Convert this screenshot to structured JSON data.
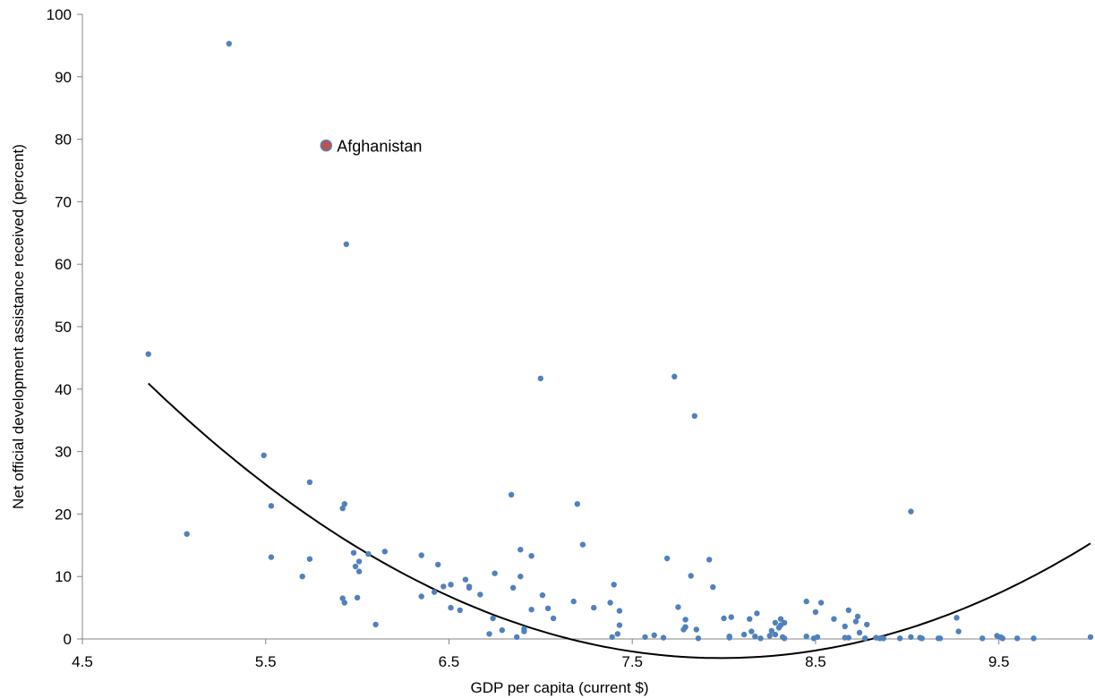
{
  "chart_data": {
    "type": "scatter",
    "xlabel": "GDP per capita (current $)",
    "ylabel": "Net official development assistance received (percent)",
    "xlim": [
      4.5,
      10.0
    ],
    "ylim": [
      0,
      100
    ],
    "x_ticks": [
      "4.5",
      "5.5",
      "6.5",
      "7.5",
      "8.5",
      "9.5"
    ],
    "x_tick_values": [
      4.5,
      5.5,
      6.5,
      7.5,
      8.5,
      9.5
    ],
    "y_ticks": [
      "0",
      "10",
      "20",
      "30",
      "40",
      "50",
      "60",
      "70",
      "80",
      "90",
      "100"
    ],
    "y_tick_values": [
      0,
      10,
      20,
      30,
      40,
      50,
      60,
      70,
      80,
      90,
      100
    ],
    "grid": false,
    "legend": "none",
    "colors": {
      "points": "#4F81BD",
      "highlight": "#C0504D",
      "trendline": "#000000"
    },
    "highlight": {
      "label": "Afghanistan",
      "x": 5.83,
      "y": 79.0
    },
    "trendline": {
      "type": "polynomial-2",
      "x_range": [
        4.86,
        10.0
      ],
      "coefficients": [
        284.3,
        -72.0,
        4.51
      ]
    },
    "points": [
      [
        4.86,
        45.6
      ],
      [
        5.07,
        16.8
      ],
      [
        5.3,
        95.3
      ],
      [
        5.49,
        29.4
      ],
      [
        5.53,
        21.3
      ],
      [
        5.53,
        13.1
      ],
      [
        5.7,
        10.0
      ],
      [
        5.74,
        25.1
      ],
      [
        5.74,
        12.8
      ],
      [
        5.92,
        20.9
      ],
      [
        5.93,
        21.6
      ],
      [
        5.94,
        63.2
      ],
      [
        5.92,
        6.5
      ],
      [
        5.93,
        5.8
      ],
      [
        5.98,
        13.8
      ],
      [
        5.99,
        11.6
      ],
      [
        6.0,
        6.6
      ],
      [
        6.01,
        10.8
      ],
      [
        6.01,
        12.4
      ],
      [
        6.06,
        13.6
      ],
      [
        6.1,
        2.3
      ],
      [
        6.15,
        14.0
      ],
      [
        6.35,
        13.4
      ],
      [
        6.35,
        6.8
      ],
      [
        6.42,
        7.5
      ],
      [
        6.44,
        11.9
      ],
      [
        6.47,
        8.4
      ],
      [
        6.51,
        8.7
      ],
      [
        6.51,
        5.0
      ],
      [
        6.56,
        4.6
      ],
      [
        6.59,
        9.5
      ],
      [
        6.61,
        8.4
      ],
      [
        6.61,
        8.2
      ],
      [
        6.67,
        7.1
      ],
      [
        6.72,
        0.8
      ],
      [
        6.74,
        3.3
      ],
      [
        6.75,
        10.5
      ],
      [
        6.79,
        1.4
      ],
      [
        6.84,
        23.1
      ],
      [
        6.85,
        8.2
      ],
      [
        6.87,
        0.3
      ],
      [
        6.89,
        14.3
      ],
      [
        6.89,
        10.0
      ],
      [
        6.91,
        1.6
      ],
      [
        6.91,
        1.2
      ],
      [
        6.95,
        13.3
      ],
      [
        6.95,
        4.7
      ],
      [
        7.0,
        41.7
      ],
      [
        7.01,
        7.0
      ],
      [
        7.04,
        4.9
      ],
      [
        7.07,
        3.3
      ],
      [
        7.18,
        6.0
      ],
      [
        7.2,
        21.6
      ],
      [
        7.23,
        15.1
      ],
      [
        7.29,
        5.0
      ],
      [
        7.38,
        5.8
      ],
      [
        7.39,
        0.3
      ],
      [
        7.4,
        8.7
      ],
      [
        7.42,
        0.8
      ],
      [
        7.43,
        2.2
      ],
      [
        7.43,
        4.5
      ],
      [
        7.57,
        0.3
      ],
      [
        7.62,
        0.6
      ],
      [
        7.67,
        0.2
      ],
      [
        7.69,
        12.9
      ],
      [
        7.73,
        42.0
      ],
      [
        7.75,
        5.1
      ],
      [
        7.78,
        1.5
      ],
      [
        7.79,
        3.1
      ],
      [
        7.79,
        1.9
      ],
      [
        7.82,
        10.1
      ],
      [
        7.84,
        35.7
      ],
      [
        7.85,
        1.5
      ],
      [
        7.86,
        0.1
      ],
      [
        7.92,
        12.7
      ],
      [
        7.94,
        8.3
      ],
      [
        8.0,
        3.3
      ],
      [
        8.03,
        0.2
      ],
      [
        8.03,
        0.4
      ],
      [
        8.04,
        3.5
      ],
      [
        8.11,
        0.7
      ],
      [
        8.14,
        3.2
      ],
      [
        8.15,
        1.2
      ],
      [
        8.17,
        0.4
      ],
      [
        8.18,
        4.1
      ],
      [
        8.2,
        0.1
      ],
      [
        8.25,
        0.5
      ],
      [
        8.26,
        1.3
      ],
      [
        8.28,
        2.6
      ],
      [
        8.28,
        0.7
      ],
      [
        8.3,
        1.8
      ],
      [
        8.31,
        3.2
      ],
      [
        8.31,
        2.2
      ],
      [
        8.32,
        0.3
      ],
      [
        8.33,
        2.6
      ],
      [
        8.33,
        0.1
      ],
      [
        8.45,
        0.4
      ],
      [
        8.45,
        6.0
      ],
      [
        8.49,
        0.1
      ],
      [
        8.5,
        4.3
      ],
      [
        8.51,
        0.3
      ],
      [
        8.53,
        5.8
      ],
      [
        8.6,
        3.2
      ],
      [
        8.66,
        0.2
      ],
      [
        8.66,
        2.0
      ],
      [
        8.68,
        4.6
      ],
      [
        8.68,
        0.2
      ],
      [
        8.72,
        2.8
      ],
      [
        8.73,
        3.6
      ],
      [
        8.74,
        1.0
      ],
      [
        8.77,
        0.1
      ],
      [
        8.78,
        2.3
      ],
      [
        8.83,
        0.2
      ],
      [
        8.85,
        0.1
      ],
      [
        8.87,
        0.1
      ],
      [
        8.96,
        0.1
      ],
      [
        9.02,
        20.4
      ],
      [
        9.02,
        0.3
      ],
      [
        9.07,
        0.2
      ],
      [
        9.08,
        0.1
      ],
      [
        9.17,
        0.1
      ],
      [
        9.18,
        0.1
      ],
      [
        9.27,
        3.4
      ],
      [
        9.28,
        1.2
      ],
      [
        9.41,
        0.1
      ],
      [
        9.49,
        0.5
      ],
      [
        9.51,
        0.3
      ],
      [
        9.52,
        0.1
      ],
      [
        9.6,
        0.1
      ],
      [
        9.69,
        0.1
      ],
      [
        10.0,
        0.3
      ]
    ]
  }
}
